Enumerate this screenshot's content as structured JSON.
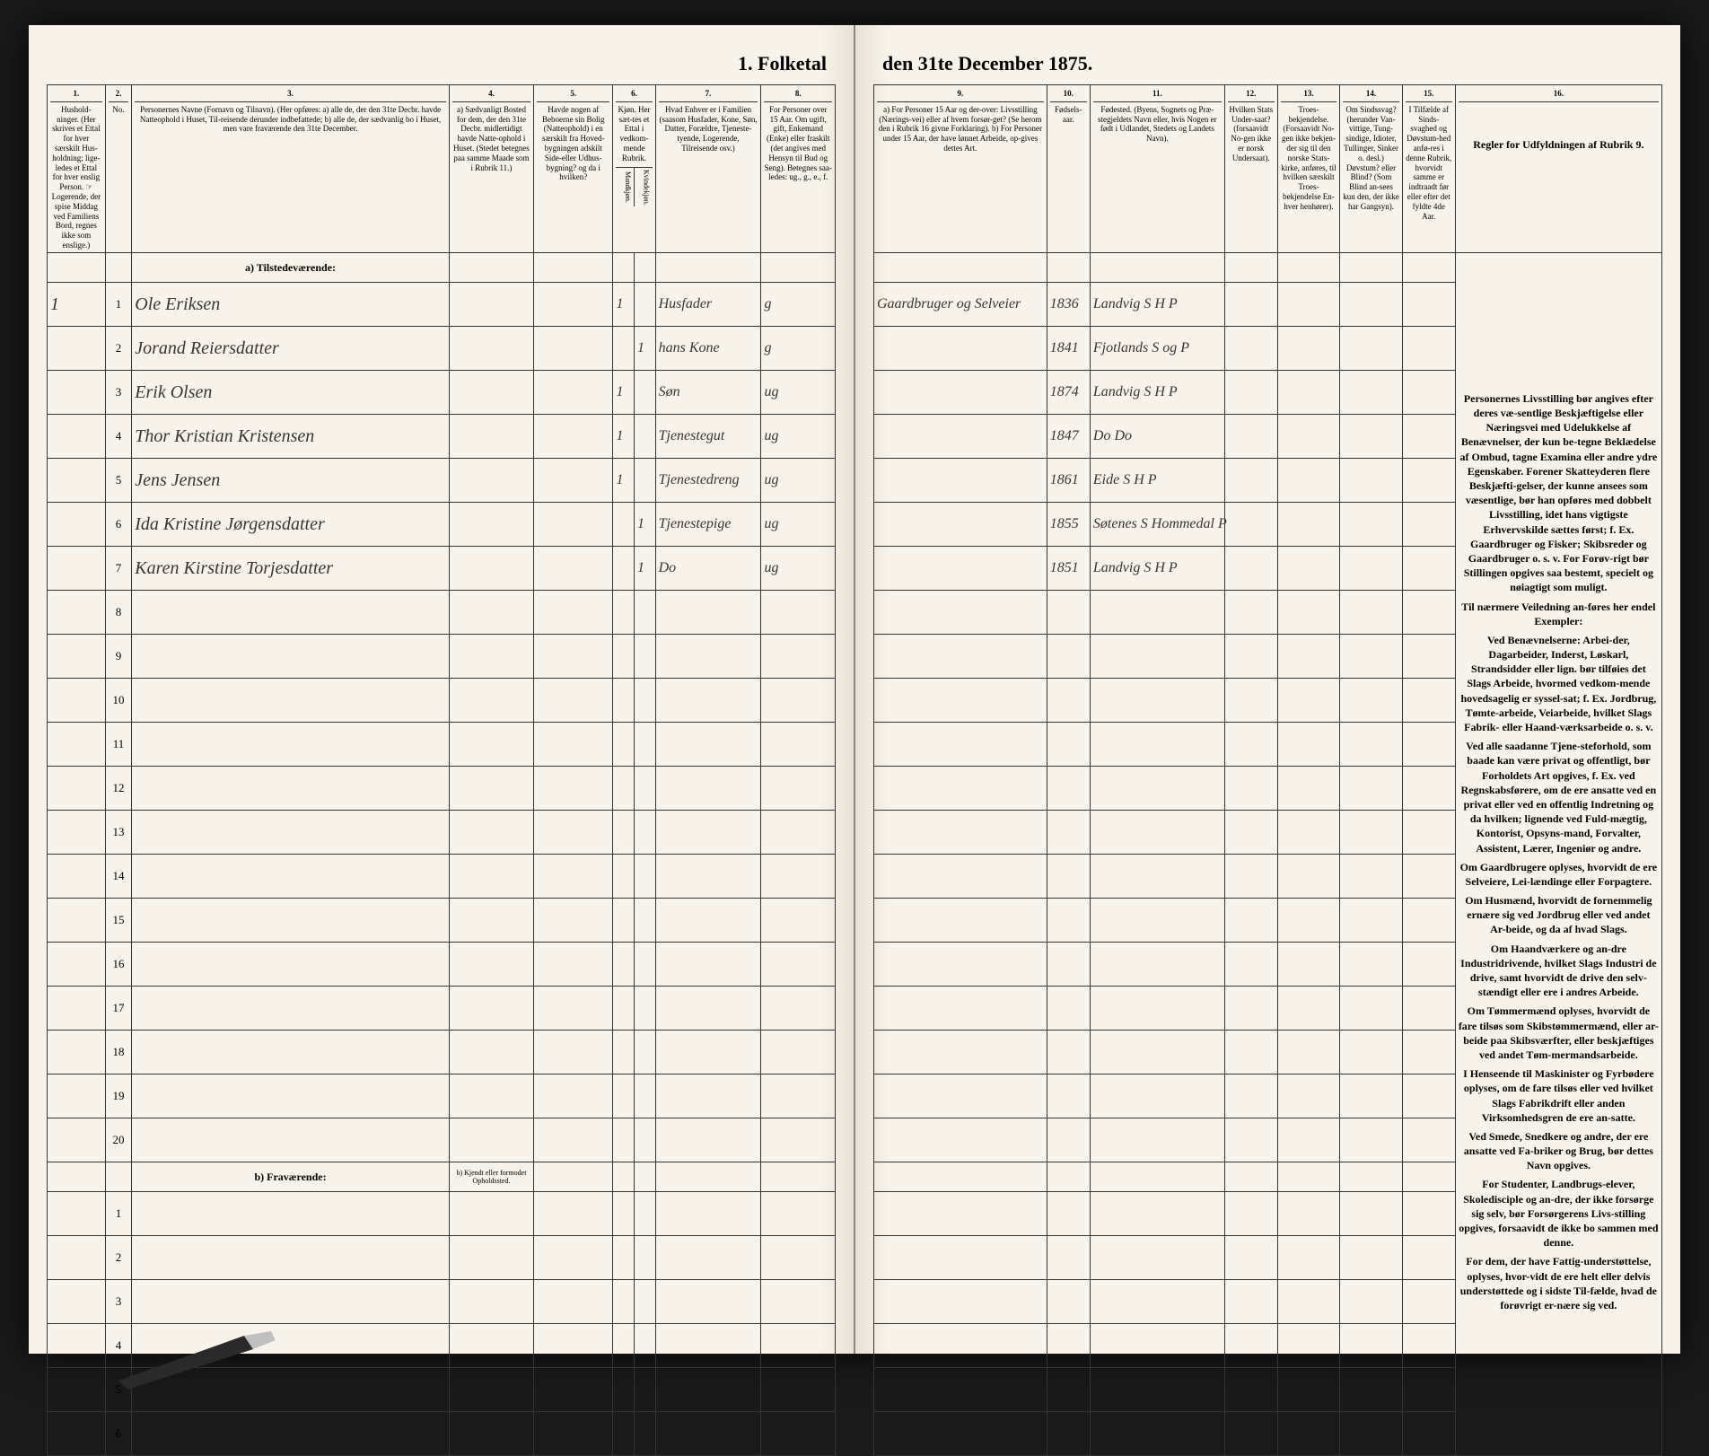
{
  "title_left": "1. Folketal",
  "title_right": "den 31te December 1875.",
  "columns": {
    "c1": {
      "num": "1.",
      "label": "Hushold-\nninger.\n(Her skrives et Ettal for hver særskilt Hus-holdning; lige-ledes et Ettal for hver enslig Person.\n☞ Logerende, der spise Middag ved Familiens Bord, regnes ikke som enslige.)"
    },
    "c2": {
      "num": "2.",
      "label": "No."
    },
    "c3": {
      "num": "3.",
      "label": "Personernes Navne (Fornavn og Tilnavn).\n(Her opføres:\na) alle de, der den 31te Decbr. havde Natteophold i Huset, Til-reisende derunder indbefattede;\nb) alle de, der sædvanlig bo i Huset, men vare fraværende den 31te December."
    },
    "c4": {
      "num": "4.",
      "label": "a) Sædvanligt Bosted for dem, der den 31te Decbr. midlertidigt havde Natte-ophold i Huset. (Stedet betegnes paa samme Maade som i Rubrik 11.)"
    },
    "c5": {
      "num": "5.",
      "label": "Havde nogen af Beboerne sin Bolig (Natteophold) i en særskilt fra Hoved-bygningen adskilt Side-eller Udhus-bygning? og da i hvilken?"
    },
    "c6": {
      "num": "6.",
      "label": "Kjøn.\nHer sæt-tes et Ettal i vedkom-mende Rubrik."
    },
    "c6a": {
      "label": "Mandkjøn."
    },
    "c6b": {
      "label": "Kvindekjøn."
    },
    "c7": {
      "num": "7.",
      "label": "Hvad Enhver er i Familien\n(saasom Husfader, Kone, Søn, Datter, Forældre, Tjeneste-tyende, Logerende, Tilreisende osv.)"
    },
    "c8": {
      "num": "8.",
      "label": "For Personer over 15 Aar. Om ugift, gift, Enkemand (Enke) eller fraskilt (det angives med Hensyn til Bud og Seng). Betegnes saa-ledes: ug., g., e., f."
    },
    "c9": {
      "num": "9.",
      "label": "a) For Personer 15 Aar og der-over: Livsstilling (Nærings-vei) eller af hvem forsør-get? (Se herom den i Rubrik 16 givne Forklaring).\nb) For Personer under 15 Aar, der have lønnet Arbeide, op-gives dettes Art."
    },
    "c10": {
      "num": "10.",
      "label": "Fødsels-aar."
    },
    "c11": {
      "num": "11.",
      "label": "Fødested.\n(Byens, Sognets og Præ-stegjeldets Navn eller, hvis Nogen er født i Udlandet, Stedets og Landets Navn)."
    },
    "c12": {
      "num": "12.",
      "label": "Hvilken Stats Under-saat?\n(forsaavidt No-gen ikke er norsk Undersaat)."
    },
    "c13": {
      "num": "13.",
      "label": "Troes-bekjendelse.\n(Forsaavidt No-gen ikke bekjen-der sig til den norske Stats-kirke, anføres, til hvilken særskilt Troes-bekjendelse En-hver henhører)."
    },
    "c14": {
      "num": "14.",
      "label": "Om Sindssvag?\n(herunder Van-vittige, Tung-sindige, Idioter, Tullinger, Sinker o. desl.)\nDøvstum? eller Blind?\n(Som Blind an-sees kun den, der ikke har Gangsyn)."
    },
    "c15": {
      "num": "15.",
      "label": "I Tilfælde af Sinds-svaghed og Døvstum-hed anfø-res i denne Rubrik, hvorvidt samme er indtraadt før eller efter det fyldte 4de Aar."
    },
    "c16": {
      "num": "16.",
      "label": "Regler for Udfyldningen\naf\nRubrik 9."
    }
  },
  "section_a": "a) Tilstedeværende:",
  "section_b": "b) Fraværende:",
  "section_b_note": "b) Kjendt eller formodet Opholdssted.",
  "rows": [
    {
      "hh": "1",
      "n": "1",
      "name": "Ole Eriksen",
      "m": "1",
      "rel": "Husfader",
      "ms": "g",
      "occ": "Gaardbruger og Selveier",
      "yr": "1836",
      "bp": "Landvig S H P"
    },
    {
      "hh": "",
      "n": "2",
      "name": "Jorand Reiersdatter",
      "f": "1",
      "rel": "hans Kone",
      "ms": "g",
      "occ": "",
      "yr": "1841",
      "bp": "Fjotlands S og P"
    },
    {
      "hh": "",
      "n": "3",
      "name": "Erik Olsen",
      "m": "1",
      "rel": "Søn",
      "ms": "ug",
      "occ": "",
      "yr": "1874",
      "bp": "Landvig S H P"
    },
    {
      "hh": "",
      "n": "4",
      "name": "Thor Kristian Kristensen",
      "m": "1",
      "rel": "Tjenestegut",
      "ms": "ug",
      "occ": "",
      "yr": "1847",
      "bp": "Do Do"
    },
    {
      "hh": "",
      "n": "5",
      "name": "Jens Jensen",
      "m": "1",
      "rel": "Tjenestedreng",
      "ms": "ug",
      "occ": "",
      "yr": "1861",
      "bp": "Eide S H P"
    },
    {
      "hh": "",
      "n": "6",
      "name": "Ida Kristine Jørgensdatter",
      "f": "1",
      "rel": "Tjenestepige",
      "ms": "ug",
      "occ": "",
      "yr": "1855",
      "bp": "Søtenes S Hommedal P"
    },
    {
      "hh": "",
      "n": "7",
      "name": "Karen Kirstine Torjesdatter",
      "f": "1",
      "rel": "Do",
      "ms": "ug",
      "occ": "",
      "yr": "1851",
      "bp": "Landvig S H P"
    }
  ],
  "empty_rows_a": [
    "8",
    "9",
    "10",
    "11",
    "12",
    "13",
    "14",
    "15",
    "16",
    "17",
    "18",
    "19",
    "20"
  ],
  "empty_rows_b": [
    "1",
    "2",
    "3",
    "4",
    "5",
    "6"
  ],
  "instructions": [
    "Personernes Livsstilling bør angives efter deres væ-sentlige Beskjæftigelse eller Næringsvei med Udelukkelse af Benævnelser, der kun be-tegne Beklædelse af Ombud, tagne Examina eller andre ydre Egenskaber. Forener Skatteyderen flere Beskjæfti-gelser, der kunne ansees som væsentlige, bør han opføres med dobbelt Livsstilling, idet hans vigtigste Erhvervskilde sættes først; f. Ex. Gaardbruger og Fisker; Skibsreder og Gaardbruger o. s. v. For Forøv-rigt bør Stillingen opgives saa bestemt, specielt og nøiagtigt som muligt.",
    "Til nærmere Veiledning an-føres her endel Exempler:",
    "Ved Benævnelserne: Arbei-der, Dagarbeider, Inderst, Løskarl, Strandsidder eller lign. bør tilføies det Slags Arbeide, hvormed vedkom-mende hovedsagelig er syssel-sat; f. Ex. Jordbrug, Tømte-arbeide, Veiarbeide, hvilket Slags Fabrik- eller Haand-værksarbeide o. s. v.",
    "Ved alle saadanne Tjene-steforhold, som baade kan være privat og offentligt, bør Forholdets Art opgives, f. Ex. ved Regnskabsførere, om de ere ansatte ved en privat eller ved en offentlig Indretning og da hvilken; lignende ved Fuld-mægtig, Kontorist, Opsyns-mand, Forvalter, Assistent, Lærer, Ingeniør og andre.",
    "Om Gaardbrugere oplyses, hvorvidt de ere Selveiere, Lei-lændinge eller Forpagtere.",
    "Om Husmænd, hvorvidt de fornemmelig ernære sig ved Jordbrug eller ved andet Ar-beide, og da af hvad Slags.",
    "Om Haandværkere og an-dre Industridrivende, hvilket Slags Industri de drive, samt hvorvidt de drive den selv-stændigt eller ere i andres Arbeide.",
    "Om Tømmermænd oplyses, hvorvidt de fare tilsøs som Skibstømmermænd, eller ar-beide paa Skibsværfter, eller beskjæftiges ved andet Tøm-mermandsarbeide.",
    "I Henseende til Maskinister og Fyrbødere oplyses, om de fare tilsøs eller ved hvilket Slags Fabrikdrift eller anden Virksomhedsgren de ere an-satte.",
    "Ved Smede, Snedkere og andre, der ere ansatte ved Fa-briker og Brug, bør dettes Navn opgives.",
    "For Studenter, Landbrugs-elever, Skoledisciple og an-dre, der ikke forsørge sig selv, bør Forsørgerens Livs-stilling opgives, forsaavidt de ikke bo sammen med denne.",
    "For dem, der have Fattig-understøttelse, oplyses, hvor-vidt de ere helt eller delvis understøttede og i sidste Til-fælde, hvad de forøvrigt er-nære sig ved."
  ],
  "colwidths_left": {
    "c1": 55,
    "c2": 25,
    "c3": 300,
    "c4": 80,
    "c5": 75,
    "c6a": 20,
    "c6b": 20,
    "c7": 100,
    "c8": 70
  },
  "colwidths_right": {
    "c9": 180,
    "c10": 45,
    "c11": 140,
    "c12": 55,
    "c13": 65,
    "c14": 65,
    "c15": 55,
    "c16": 215
  }
}
